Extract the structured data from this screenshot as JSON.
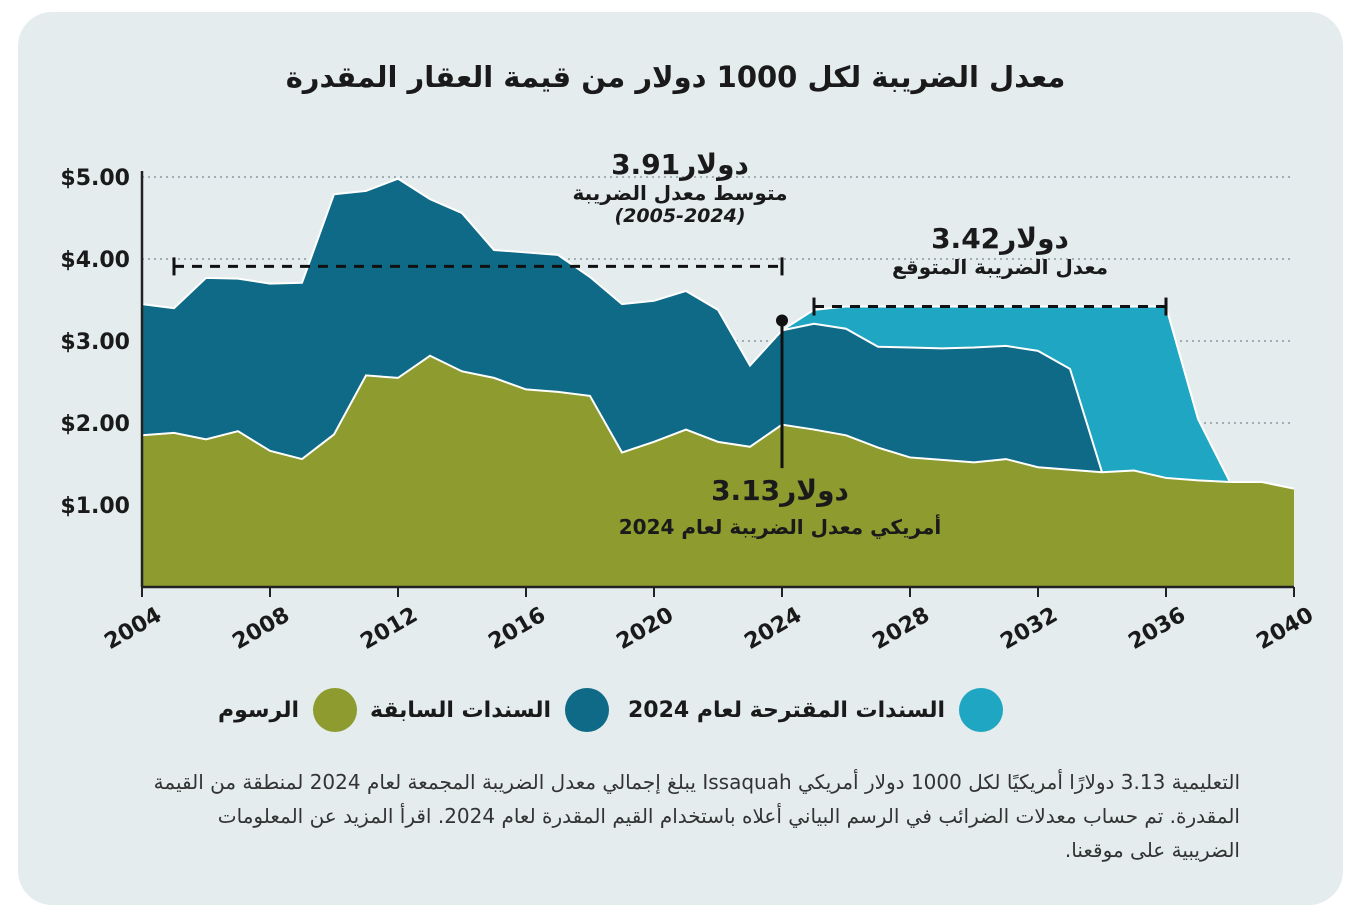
{
  "chart_data": {
    "type": "area",
    "title": "معدل الضريبة لكل 1000 دولار من قيمة العقار المقدرة",
    "xlabel": "",
    "ylabel": "",
    "xlim": [
      2004,
      2040
    ],
    "ylim": [
      0,
      5
    ],
    "y_ticks": [
      1,
      2,
      3,
      4,
      5
    ],
    "y_tick_labels": [
      "$1.00",
      "$2.00",
      "$3.00",
      "$4.00",
      "$5.00"
    ],
    "x_ticks": [
      2004,
      2008,
      2012,
      2016,
      2020,
      2024,
      2028,
      2032,
      2036,
      2040
    ],
    "x_tick_labels": [
      "2004",
      "2008",
      "2012",
      "2016",
      "2020",
      "2024",
      "2028",
      "2032",
      "2036",
      "2040"
    ],
    "grid": true,
    "stacked_cumulative": true,
    "series": [
      {
        "name": "الرسوم",
        "color": "#8d9b2f",
        "x": [
          2004,
          2005,
          2006,
          2007,
          2008,
          2009,
          2010,
          2011,
          2012,
          2013,
          2014,
          2015,
          2016,
          2017,
          2018,
          2019,
          2020,
          2021,
          2022,
          2023,
          2024,
          2025,
          2026,
          2027,
          2028,
          2029,
          2030,
          2031,
          2032,
          2033,
          2034,
          2035,
          2036,
          2037,
          2038,
          2039,
          2040
        ],
        "values": [
          1.85,
          1.88,
          1.8,
          1.9,
          1.66,
          1.56,
          1.86,
          2.58,
          2.55,
          2.82,
          2.63,
          2.55,
          2.41,
          2.38,
          2.33,
          1.64,
          1.77,
          1.92,
          1.77,
          1.71,
          1.98,
          1.92,
          1.85,
          1.7,
          1.58,
          1.55,
          1.52,
          1.56,
          1.46,
          1.43,
          1.4,
          1.42,
          1.33,
          1.3,
          1.28,
          1.28,
          1.2
        ]
      },
      {
        "name": "السندات السابقة",
        "color": "#0e6a86",
        "x": [
          2004,
          2005,
          2006,
          2007,
          2008,
          2009,
          2010,
          2011,
          2012,
          2013,
          2014,
          2015,
          2016,
          2017,
          2018,
          2019,
          2020,
          2021,
          2022,
          2023,
          2024,
          2025,
          2026,
          2027,
          2028,
          2029,
          2030,
          2031,
          2032,
          2033,
          2034
        ],
        "values": [
          3.45,
          3.4,
          3.77,
          3.76,
          3.7,
          3.71,
          4.79,
          4.83,
          4.98,
          4.73,
          4.56,
          4.11,
          4.08,
          4.05,
          3.78,
          3.45,
          3.49,
          3.61,
          3.38,
          2.7,
          3.13,
          3.21,
          3.15,
          2.93,
          2.92,
          2.91,
          2.92,
          2.94,
          2.88,
          2.66,
          1.4
        ]
      },
      {
        "name": "السندات المقترحة لعام 2024",
        "color": "#1fa6c3",
        "x": [
          2024,
          2025,
          2026,
          2027,
          2028,
          2029,
          2030,
          2031,
          2032,
          2033,
          2034,
          2035,
          2036,
          2037,
          2038
        ],
        "values": [
          3.13,
          3.38,
          3.42,
          3.42,
          3.42,
          3.42,
          3.42,
          3.42,
          3.42,
          3.42,
          3.42,
          3.42,
          3.42,
          2.05,
          1.28
        ]
      }
    ],
    "annotations": {
      "avg_value": "3.91",
      "avg_currency": "دولار",
      "avg_label": "متوسط معدل الضريبة",
      "avg_period": "(2005-2024)",
      "avg_line": {
        "x_start": 2005,
        "x_end": 2024,
        "y": 3.91
      },
      "proj_value": "3.42",
      "proj_currency": "دولار",
      "proj_label": "معدل الضريبة المتوقع",
      "proj_line": {
        "x_start": 2025,
        "x_end": 2036,
        "y": 3.42
      },
      "marker_value": "3.13",
      "marker_currency": "دولار",
      "marker_label": "أمريكي معدل الضريبة لعام 2024",
      "marker_point": {
        "x": 2024,
        "y": 3.25
      }
    }
  },
  "legend": [
    {
      "label": "السندات المقترحة لعام 2024",
      "color": "#1fa6c3"
    },
    {
      "label": "السندات السابقة",
      "color": "#0e6a86"
    },
    {
      "label": "الرسوم",
      "color": "#8d9b2f"
    }
  ],
  "footnote": "التعليمية 3.13 دولارًا أمريكيًا لكل 1000 دولار أمريكي Issaquah يبلغ إجمالي معدل الضريبة المجمعة لعام 2024 لمنطقة من القيمة المقدرة. تم حساب معدلات الضرائب في الرسم البياني أعلاه باستخدام القيم المقدرة لعام 2024. اقرأ المزيد عن المعلومات الضريبية على موقعنا."
}
